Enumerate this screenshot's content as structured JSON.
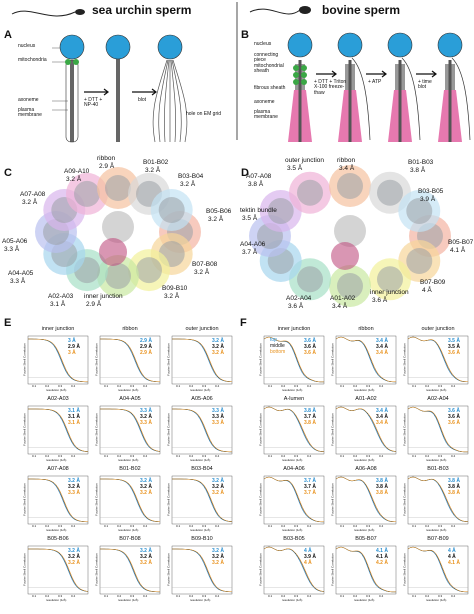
{
  "header": {
    "left": "sea urchin sperm",
    "right": "bovine sperm"
  },
  "panel_a": {
    "letter": "A",
    "labels": [
      "nucleus",
      "mitochondria",
      "axoneme",
      "plasma membrane"
    ],
    "steps": [
      "+ DTT + NP-40",
      "blot"
    ],
    "note": "hole on EM grid"
  },
  "panel_b": {
    "letter": "B",
    "labels": [
      "nucleus",
      "connecting piece",
      "mitochondrial sheath",
      "fibrous sheath",
      "axoneme",
      "plasma membrane"
    ],
    "steps": [
      "+ DTT + Triton X-100 freeze-thaw",
      "+ ATP",
      "+ time blot"
    ]
  },
  "panel_c": {
    "letter": "C",
    "regions": [
      {
        "name": "ribbon",
        "res": "2.9 Å"
      },
      {
        "name": "A09-A10",
        "res": "3.2 Å"
      },
      {
        "name": "B01-B02",
        "res": "3.2 Å"
      },
      {
        "name": "B03-B04",
        "res": "3.2 Å"
      },
      {
        "name": "A07-A08",
        "res": "3.2 Å"
      },
      {
        "name": "B05-B06",
        "res": "3.2 Å"
      },
      {
        "name": "A05-A06",
        "res": "3.3 Å"
      },
      {
        "name": "A04-A05",
        "res": "3.3 Å"
      },
      {
        "name": "B07-B08",
        "res": "3.2 Å"
      },
      {
        "name": "B09-B10",
        "res": "3.2 Å"
      },
      {
        "name": "A02-A03",
        "res": "3.1 Å"
      },
      {
        "name": "inner junction",
        "res": "2.9 Å"
      }
    ]
  },
  "panel_d": {
    "letter": "D",
    "regions": [
      {
        "name": "outer junction",
        "res": "3.5 Å"
      },
      {
        "name": "ribbon",
        "res": "3.4 Å"
      },
      {
        "name": "B01-B03",
        "res": "3.8 Å"
      },
      {
        "name": "A07-A08",
        "res": "3.8 Å"
      },
      {
        "name": "B03-B05",
        "res": "3.9 Å"
      },
      {
        "name": "tektin bundle",
        "res": "3.5 Å"
      },
      {
        "name": "A04-A06",
        "res": "3.7 Å"
      },
      {
        "name": "B05-B07",
        "res": "4.1 Å"
      },
      {
        "name": "B07-B09",
        "res": "4 Å"
      },
      {
        "name": "A02-A04",
        "res": "3.6 Å"
      },
      {
        "name": "A01-A02",
        "res": "3.4 Å"
      },
      {
        "name": "inner junction",
        "res": "3.6 Å"
      }
    ]
  },
  "fsc_axes": {
    "x": "resolution (1/Å)",
    "y": "Fourier Shell Correlation",
    "xticks": [
      0.1,
      0.2,
      0.3,
      0.4
    ]
  },
  "legend": [
    "top",
    "middle",
    "bottom"
  ],
  "panel_e": {
    "letter": "E",
    "plots": [
      {
        "title": "inner junction",
        "values": [
          "3 Å",
          "2.9 Å",
          "3 Å"
        ]
      },
      {
        "title": "ribbon",
        "values": [
          "2.9 Å",
          "2.9 Å",
          "2.9 Å"
        ]
      },
      {
        "title": "outer junction",
        "values": [
          "3.2 Å",
          "3.2 Å",
          "3.2 Å"
        ]
      },
      {
        "title": "A02-A03",
        "values": [
          "3.1 Å",
          "3.1 Å",
          "3.1 Å"
        ]
      },
      {
        "title": "A04-A05",
        "values": [
          "3.3 Å",
          "3.2 Å",
          "3.3 Å"
        ]
      },
      {
        "title": "A05-A06",
        "values": [
          "3.3 Å",
          "3.3 Å",
          "3.3 Å"
        ]
      },
      {
        "title": "A07-A08",
        "values": [
          "3.2 Å",
          "3.2 Å",
          "3.3 Å"
        ]
      },
      {
        "title": "B01-B02",
        "values": [
          "3.2 Å",
          "3.2 Å",
          "3.2 Å"
        ]
      },
      {
        "title": "B03-B04",
        "values": [
          "3.2 Å",
          "3.2 Å",
          "3.2 Å"
        ]
      },
      {
        "title": "B05-B06",
        "values": [
          "3.2 Å",
          "3.2 Å",
          "3.2 Å"
        ]
      },
      {
        "title": "B07-B08",
        "values": [
          "3.2 Å",
          "3.2 Å",
          "3.2 Å"
        ]
      },
      {
        "title": "B09-B10",
        "values": [
          "3.2 Å",
          "3.2 Å",
          "3.2 Å"
        ]
      }
    ]
  },
  "panel_f": {
    "letter": "F",
    "plots": [
      {
        "title": "inner junction",
        "values": [
          "3.6 Å",
          "3.6 Å",
          "3.6 Å"
        ]
      },
      {
        "title": "ribbon",
        "values": [
          "3.4 Å",
          "3.4 Å",
          "3.4 Å"
        ]
      },
      {
        "title": "outer junction",
        "values": [
          "3.5 Å",
          "3.5 Å",
          "3.6 Å"
        ]
      },
      {
        "title": "A-lumen",
        "values": [
          "3.8 Å",
          "3.7 Å",
          "3.8 Å"
        ]
      },
      {
        "title": "A01-A02",
        "values": [
          "3.4 Å",
          "3.4 Å",
          "3.4 Å"
        ]
      },
      {
        "title": "A02-A04",
        "values": [
          "3.6 Å",
          "3.6 Å",
          "3.6 Å"
        ]
      },
      {
        "title": "A04-A06",
        "values": [
          "3.7 Å",
          "3.7 Å",
          "3.7 Å"
        ]
      },
      {
        "title": "A06-A08",
        "values": [
          "3.8 Å",
          "3.8 Å",
          "3.8 Å"
        ]
      },
      {
        "title": "B01-B03",
        "values": [
          "3.8 Å",
          "3.8 Å",
          "3.8 Å"
        ]
      },
      {
        "title": "B03-B05",
        "values": [
          "4 Å",
          "3.9 Å",
          "4 Å"
        ]
      },
      {
        "title": "B05-B07",
        "values": [
          "4.1 Å",
          "4.1 Å",
          "4.2 Å"
        ]
      },
      {
        "title": "B07-B09",
        "values": [
          "4 Å",
          "4 Å",
          "4.1 Å"
        ]
      }
    ]
  }
}
